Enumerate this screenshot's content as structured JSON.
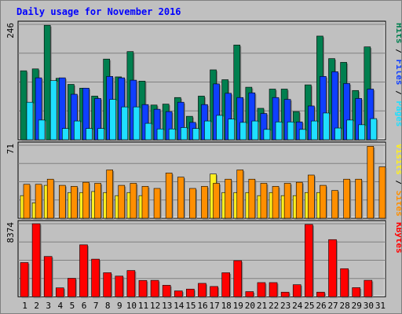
{
  "chart_data": {
    "type": "bar",
    "title": "Daily usage for November 2016",
    "categories": [
      "1",
      "2",
      "3",
      "4",
      "5",
      "6",
      "7",
      "8",
      "9",
      "10",
      "11",
      "12",
      "13",
      "14",
      "15",
      "16",
      "17",
      "18",
      "19",
      "20",
      "21",
      "22",
      "23",
      "24",
      "25",
      "26",
      "27",
      "28",
      "29",
      "30",
      "31"
    ],
    "weekend_days": [
      "5",
      "6",
      "12",
      "13",
      "19",
      "20",
      "26",
      "27"
    ],
    "colors": {
      "hits": "#007f4f",
      "files": "#0f3fff",
      "pages": "#1fdfff",
      "visits": "#ff8f00",
      "sites": "#ffef1f",
      "kbytes": "#ff0000",
      "weekend_label": "#007f4f",
      "weekday_label": "#000000"
    },
    "panels": [
      {
        "id": "hits-files-pages",
        "max_label": "246",
        "ymax": 246,
        "legend": [
          {
            "label": "Hits",
            "color": "#007f4f"
          },
          {
            "label": " / ",
            "color": "#000000"
          },
          {
            "label": "Files",
            "color": "#0f3fff"
          },
          {
            "label": " / ",
            "color": "#000000"
          },
          {
            "label": "Pages",
            "color": "#1fdfff"
          }
        ],
        "series": [
          {
            "name": "Hits",
            "color": "#007f4f",
            "values": [
              147,
              151,
              244,
              131,
              118,
              110,
              93,
              172,
              134,
              188,
              125,
              74,
              76,
              90,
              50,
              93,
              149,
              128,
              202,
              112,
              67,
              108,
              108,
              60,
              117,
              221,
              173,
              165,
              105,
              198,
              0
            ]
          },
          {
            "name": "Files",
            "color": "#0f3fff",
            "values": [
              0,
              132,
              0,
              132,
              97,
              110,
              88,
              135,
              132,
              127,
              75,
              65,
              60,
              80,
              37,
              75,
              119,
              99,
              90,
              100,
              56,
              90,
              86,
              38,
              72,
              135,
              145,
              120,
              88,
              108,
              0
            ]
          },
          {
            "name": "Pages",
            "color": "#1fdfff",
            "values": [
              80,
              42,
              126,
              24,
              40,
              24,
              24,
              86,
              70,
              70,
              35,
              23,
              23,
              26,
              24,
              40,
              52,
              44,
              37,
              40,
              22,
              38,
              38,
              22,
              40,
              57,
              25,
              42,
              32,
              45,
              0
            ]
          }
        ]
      },
      {
        "id": "visits-sites",
        "max_label": "71",
        "ymax": 71,
        "legend": [
          {
            "label": "Visits",
            "color": "#ffef1f"
          },
          {
            "label": " / ",
            "color": "#000000"
          },
          {
            "label": "Sites",
            "color": "#ff8f00"
          }
        ],
        "series": [
          {
            "name": "Visits",
            "color": "#ffef1f",
            "values": [
              22,
              15,
              32,
              0,
              25,
              25,
              26,
              25,
              22,
              25,
              22,
              0,
              0,
              0,
              0,
              0,
              43,
              25,
              25,
              25,
              22,
              25,
              22,
              22,
              25,
              25,
              0,
              0,
              0,
              0,
              0
            ]
          },
          {
            "name": "Sites",
            "color": "#ff8f00",
            "values": [
              33,
              33,
              38,
              32,
              31,
              35,
              34,
              47,
              32,
              34,
              31,
              29,
              44,
              40,
              29,
              31,
              34,
              38,
              47,
              38,
              34,
              31,
              34,
              35,
              42,
              32,
              27,
              38,
              38,
              70,
              50
            ]
          }
        ]
      },
      {
        "id": "kbytes",
        "max_label": "8374",
        "ymax": 8374,
        "legend": [
          {
            "label": "KBytes",
            "color": "#ff0000"
          }
        ],
        "series": [
          {
            "name": "KBytes",
            "color": "#ff0000",
            "values": [
              3920,
              8374,
              4620,
              1020,
              2115,
              5956,
              4313,
              2755,
              2367,
              3010,
              1867,
              1880,
              1314,
              669,
              879,
              1536,
              1177,
              2752,
              4140,
              587,
              1623,
              1623,
              523,
              1381,
              8290,
              525,
              6552,
              3219,
              1041,
              1885,
              0
            ]
          }
        ]
      }
    ]
  }
}
